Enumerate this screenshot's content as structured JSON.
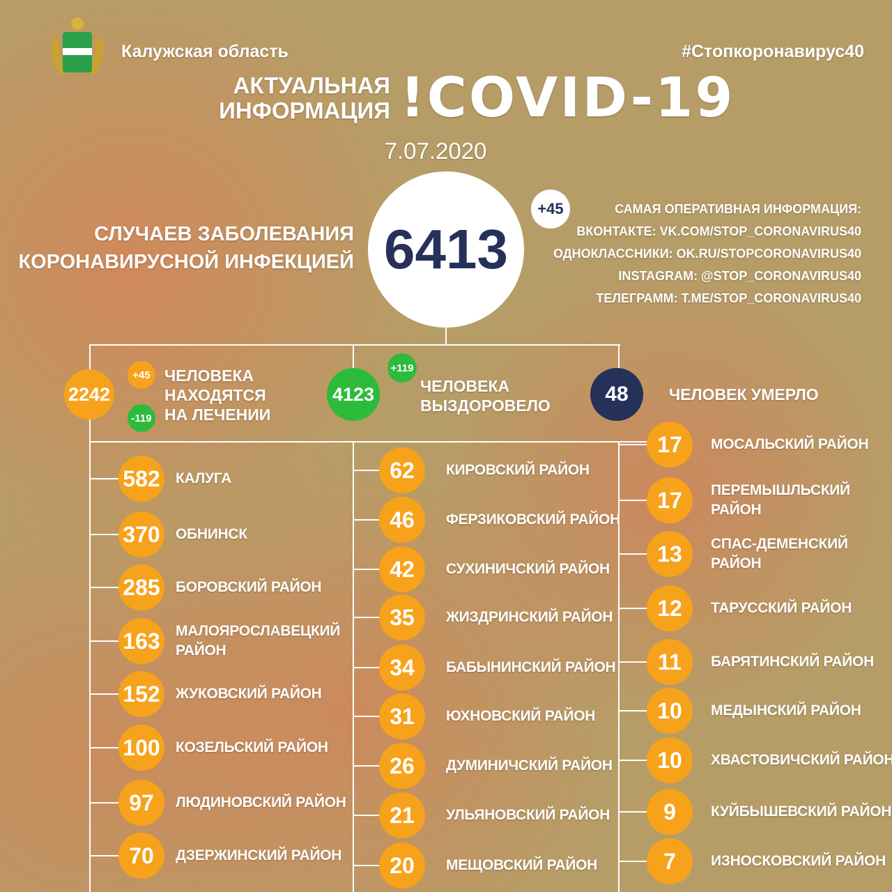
{
  "header": {
    "region": "Калужская область",
    "hashtag": "#Стопкоронавирус40",
    "title_small_1": "АКТУАЛЬНАЯ",
    "title_small_2": "ИНФОРМАЦИЯ",
    "title_big": "!COVID-19",
    "date": "7.07.2020"
  },
  "total": {
    "label_1": "СЛУЧАЕВ ЗАБОЛЕВАНИЯ",
    "label_2": "КОРОНАВИРУСНОЙ ИНФЕКЦИЕЙ",
    "value": "6413",
    "delta": "+45"
  },
  "contacts": {
    "heading": "САМАЯ ОПЕРАТИВНАЯ ИНФОРМАЦИЯ:",
    "lines": [
      "ВКОНТАКТЕ: VK.COM/STOP_CORONAVIRUS40",
      "ОДНОКЛАССНИКИ: OK.RU/STOPCORONAVIRUS40",
      "INSTAGRAM: @STOP_CORONAVIRUS40",
      "ТЕЛЕГРАММ: T.ME/STOP_CORONAVIRUS40"
    ]
  },
  "treatment": {
    "value": "2242",
    "plus": "+45",
    "minus": "-119",
    "label_1": "ЧЕЛОВЕКА",
    "label_2": "НАХОДЯТСЯ",
    "label_3": "НА ЛЕЧЕНИИ"
  },
  "recovered": {
    "value": "4123",
    "delta": "+119",
    "label_1": "ЧЕЛОВЕКА",
    "label_2": "ВЫЗДОРОВЕЛО"
  },
  "deaths": {
    "value": "48",
    "label": "ЧЕЛОВЕК УМЕРЛО"
  },
  "colors": {
    "orange": "#f7a21b",
    "green": "#2dbb3c",
    "navy": "#26315a",
    "background": "#b69d67"
  },
  "districts": {
    "left": [
      [
        "582",
        "КАЛУГА"
      ],
      [
        "370",
        "ОБНИНСК"
      ],
      [
        "285",
        "БОРОВСКИЙ РАЙОН"
      ],
      [
        "163",
        "МАЛОЯРОСЛАВЕЦКИЙ\nРАЙОН"
      ],
      [
        "152",
        "ЖУКОВСКИЙ РАЙОН"
      ],
      [
        "100",
        "КОЗЕЛЬСКИЙ РАЙОН"
      ],
      [
        "97",
        "ЛЮДИНОВСКИЙ РАЙОН"
      ],
      [
        "70",
        "ДЗЕРЖИНСКИЙ РАЙОН"
      ]
    ],
    "middle": [
      [
        "62",
        "КИРОВСКИЙ РАЙОН"
      ],
      [
        "46",
        "ФЕРЗИКОВСКИЙ РАЙОН"
      ],
      [
        "42",
        "СУХИНИЧСКИЙ РАЙОН"
      ],
      [
        "35",
        "ЖИЗДРИНСКИЙ РАЙОН"
      ],
      [
        "34",
        "БАБЫНИНСКИЙ РАЙОН"
      ],
      [
        "31",
        "ЮХНОВСКИЙ РАЙОН"
      ],
      [
        "26",
        "ДУМИНИЧСКИЙ РАЙОН"
      ],
      [
        "21",
        "УЛЬЯНОВСКИЙ РАЙОН"
      ],
      [
        "20",
        "МЕЩОВСКИЙ РАЙОН"
      ]
    ],
    "right": [
      [
        "17",
        "МОСАЛЬСКИЙ РАЙОН"
      ],
      [
        "17",
        "ПЕРЕМЫШЛЬСКИЙ\nРАЙОН"
      ],
      [
        "13",
        "СПАС-ДЕМЕНСКИЙ\nРАЙОН"
      ],
      [
        "12",
        "ТАРУССКИЙ РАЙОН"
      ],
      [
        "11",
        "БАРЯТИНСКИЙ РАЙОН"
      ],
      [
        "10",
        "МЕДЫНСКИЙ РАЙОН"
      ],
      [
        "10",
        "ХВАСТОВИЧСКИЙ РАЙОН"
      ],
      [
        "9",
        "КУЙБЫШЕВСКИЙ РАЙОН"
      ],
      [
        "7",
        "ИЗНОСКОВСКИЙ РАЙОН"
      ]
    ]
  }
}
